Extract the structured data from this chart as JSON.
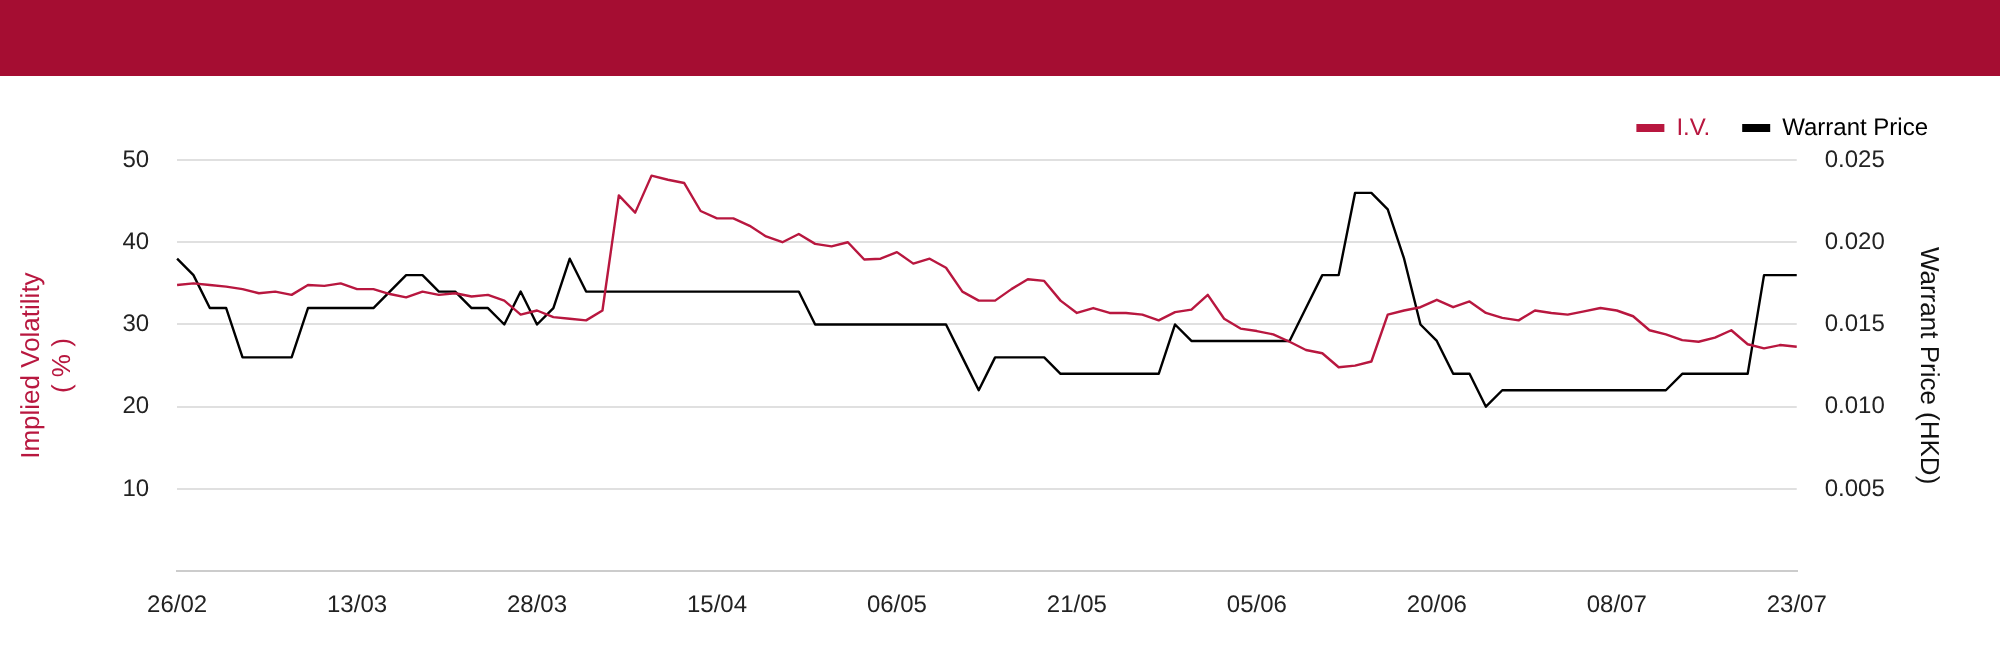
{
  "chart_data": {
    "type": "line",
    "ylabel": "Implied Volatility ( % )",
    "y2label": "Warrant Price (HKD)",
    "categories": [
      "26/02",
      null,
      null,
      null,
      null,
      null,
      null,
      null,
      null,
      null,
      null,
      "13/03",
      null,
      null,
      null,
      null,
      null,
      null,
      null,
      null,
      null,
      null,
      "28/03",
      null,
      null,
      null,
      null,
      null,
      null,
      null,
      null,
      null,
      null,
      "15/04",
      null,
      null,
      null,
      null,
      null,
      null,
      null,
      null,
      null,
      null,
      "06/05",
      null,
      null,
      null,
      null,
      null,
      null,
      null,
      null,
      null,
      null,
      "21/05",
      null,
      null,
      null,
      null,
      null,
      null,
      null,
      null,
      null,
      null,
      "05/06",
      null,
      null,
      null,
      null,
      null,
      null,
      null,
      null,
      null,
      null,
      "20/06",
      null,
      null,
      null,
      null,
      null,
      null,
      null,
      null,
      null,
      null,
      "08/07",
      null,
      null,
      null,
      null,
      null,
      null,
      null,
      null,
      null,
      null,
      "23/07"
    ],
    "series": [
      {
        "name": "I.V.",
        "color": "#b8173f",
        "values": [
          34.8,
          35,
          34.8,
          34.6,
          34.3,
          33.8,
          34,
          33.6,
          34.8,
          34.7,
          35,
          34.3,
          34.3,
          33.7,
          33.3,
          34,
          33.6,
          33.8,
          33.4,
          33.6,
          32.9,
          31.2,
          31.7,
          30.9,
          30.7,
          30.5,
          31.7,
          45.7,
          43.6,
          48.1,
          47.6,
          47.2,
          43.8,
          42.9,
          42.9,
          42,
          40.7,
          40,
          41,
          39.8,
          39.5,
          40,
          37.9,
          38,
          38.8,
          37.4,
          38,
          36.9,
          34,
          32.9,
          32.9,
          34.3,
          35.5,
          35.3,
          32.9,
          31.4,
          32,
          31.4,
          31.4,
          31.2,
          30.5,
          31.5,
          31.8,
          33.6,
          30.7,
          29.5,
          29.2,
          28.8,
          27.9,
          26.9,
          26.5,
          24.8,
          25,
          25.5,
          31.2,
          31.7,
          32.1,
          33,
          32.1,
          32.8,
          31.4,
          30.8,
          30.5,
          31.7,
          31.4,
          31.2,
          31.6,
          32,
          31.7,
          31,
          29.3,
          28.8,
          28.1,
          27.9,
          28.4,
          29.3,
          27.6,
          27.1,
          27.5,
          27.3
        ]
      },
      {
        "name": "Warrant Price",
        "color": "#000000",
        "axis": "y2",
        "values": [
          0.019,
          0.018,
          0.016,
          0.016,
          0.013,
          0.013,
          0.013,
          0.013,
          0.016,
          0.016,
          0.016,
          0.016,
          0.016,
          0.017,
          0.018,
          0.018,
          0.017,
          0.017,
          0.016,
          0.016,
          0.015,
          0.017,
          0.015,
          0.016,
          0.019,
          0.017,
          0.017,
          0.017,
          0.017,
          0.017,
          0.017,
          0.017,
          0.017,
          0.017,
          0.017,
          0.017,
          0.017,
          0.017,
          0.017,
          0.015,
          0.015,
          0.015,
          0.015,
          0.015,
          0.015,
          0.015,
          0.015,
          0.015,
          0.013,
          0.011,
          0.013,
          0.013,
          0.013,
          0.013,
          0.012,
          0.012,
          0.012,
          0.012,
          0.012,
          0.012,
          0.012,
          0.015,
          0.014,
          0.014,
          0.014,
          0.014,
          0.014,
          0.014,
          0.014,
          0.016,
          0.018,
          0.018,
          0.023,
          0.023,
          0.022,
          0.019,
          0.015,
          0.014,
          0.012,
          0.012,
          0.01,
          0.011,
          0.011,
          0.011,
          0.011,
          0.011,
          0.011,
          0.011,
          0.011,
          0.011,
          0.011,
          0.011,
          0.012,
          0.012,
          0.012,
          0.012,
          0.012,
          0.018,
          0.018,
          0.018
        ]
      }
    ],
    "ylim": [
      0,
      50
    ],
    "yticks": [
      10,
      20,
      30,
      40,
      50
    ],
    "y2lim": [
      0,
      0.025
    ],
    "y2ticks": [
      0.005,
      {
        "value": 0.01,
        "label": "0.010"
      },
      0.015,
      {
        "value": 0.02,
        "label": "0.020"
      },
      0.025
    ],
    "grid": "y",
    "legend": "top right",
    "marker": "none",
    "line_style": "solid"
  }
}
